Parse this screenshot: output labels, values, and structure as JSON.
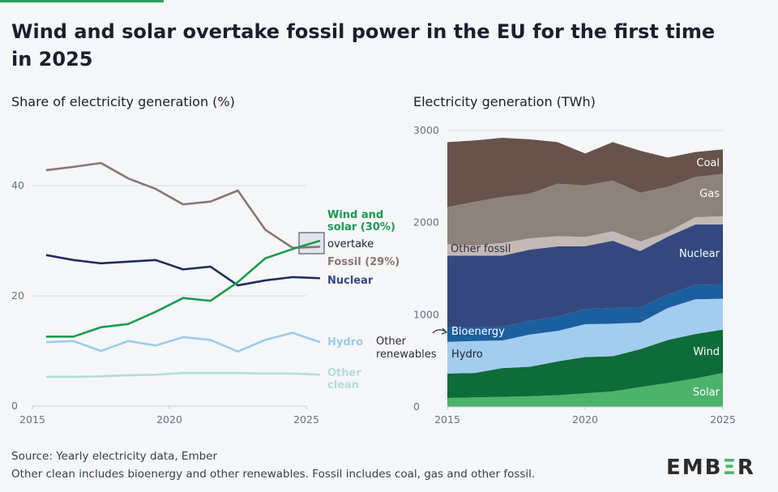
{
  "title": "Wind and solar overtake fossil power in the EU for the first time in 2025",
  "source": "Source: Yearly electricity data, Ember",
  "note": "Other clean includes bioenergy and other renewables. Fossil includes coal, gas and other fossil.",
  "logo": "EMBER",
  "colors": {
    "accent": "#2aa05a",
    "background": "#f5f6f8"
  },
  "chart_data": [
    {
      "type": "line",
      "title": "Share of electricity generation (%)",
      "x": [
        2015,
        2016,
        2017,
        2018,
        2019,
        2020,
        2021,
        2022,
        2023,
        2024,
        2025
      ],
      "xticks": [
        "2015",
        "2020",
        "2025"
      ],
      "yticks": [
        "0",
        "20",
        "40"
      ],
      "ylim": [
        0,
        46
      ],
      "grid": true,
      "series": [
        {
          "name": "Fossil (29%)",
          "color": "#8a7570",
          "values": [
            42.8,
            43.4,
            44.1,
            41.3,
            39.4,
            36.6,
            37.1,
            39.1,
            32.0,
            28.7,
            28.9
          ]
        },
        {
          "name": "Wind and solar (30%)",
          "color": "#1b9a4f",
          "values": [
            12.6,
            12.6,
            14.3,
            14.9,
            17.1,
            19.6,
            19.1,
            22.5,
            26.8,
            28.5,
            30.0
          ]
        },
        {
          "name": "Nuclear",
          "color": "#1f2d5c",
          "values": [
            27.4,
            26.5,
            25.9,
            26.2,
            26.5,
            24.8,
            25.3,
            21.9,
            22.8,
            23.4,
            23.2
          ]
        },
        {
          "name": "Hydro",
          "color": "#9ccbec",
          "values": [
            11.6,
            11.8,
            10.0,
            11.8,
            11.0,
            12.5,
            12.0,
            9.9,
            12.0,
            13.3,
            11.6
          ]
        },
        {
          "name": "Other clean",
          "color": "#b4dcdc",
          "values": [
            5.3,
            5.3,
            5.4,
            5.6,
            5.7,
            6.0,
            6.0,
            6.0,
            5.9,
            5.9,
            5.7
          ]
        }
      ],
      "annotation": "overtake"
    },
    {
      "type": "area",
      "stacked": true,
      "title": "Electricity generation (TWh)",
      "x": [
        2015,
        2016,
        2017,
        2018,
        2019,
        2020,
        2021,
        2022,
        2023,
        2024,
        2025
      ],
      "xticks": [
        "2015",
        "2020",
        "2025"
      ],
      "yticks": [
        "0",
        "1000",
        "2000",
        "3000"
      ],
      "ylim": [
        0,
        3000
      ],
      "series": [
        {
          "name": "Solar",
          "color": "#4db36a",
          "values": [
            97,
            103,
            109,
            115,
            126,
            147,
            168,
            215,
            259,
            309,
            368
          ]
        },
        {
          "name": "Wind",
          "color": "#0e6b3a",
          "values": [
            265,
            265,
            312,
            320,
            368,
            394,
            382,
            411,
            467,
            482,
            470
          ]
        },
        {
          "name": "Hydro",
          "color": "#a3cdee",
          "values": [
            344,
            347,
            300,
            350,
            330,
            356,
            353,
            289,
            347,
            377,
            335
          ]
        },
        {
          "name": "Bioenergy",
          "color": "#1b5f9e",
          "values": [
            153,
            147,
            147,
            150,
            155,
            165,
            170,
            164,
            147,
            156,
            156
          ]
        },
        {
          "name": "Nuclear",
          "color": "#34487f",
          "values": [
            782,
            779,
            773,
            771,
            762,
            682,
            730,
            612,
            627,
            655,
            650
          ]
        },
        {
          "name": "Other fossil",
          "color": "#c3b9b7",
          "values": [
            124,
            109,
            138,
            123,
            112,
            100,
            103,
            103,
            50,
            80,
            89
          ]
        },
        {
          "name": "Gas",
          "color": "#8e827c",
          "values": [
            403,
            476,
            500,
            486,
            568,
            559,
            550,
            530,
            491,
            435,
            461
          ]
        },
        {
          "name": "Coal",
          "color": "#67524c",
          "values": [
            705,
            665,
            641,
            588,
            452,
            347,
            417,
            455,
            318,
            271,
            265
          ]
        }
      ],
      "other_renewables_label": "Other renewables"
    }
  ]
}
